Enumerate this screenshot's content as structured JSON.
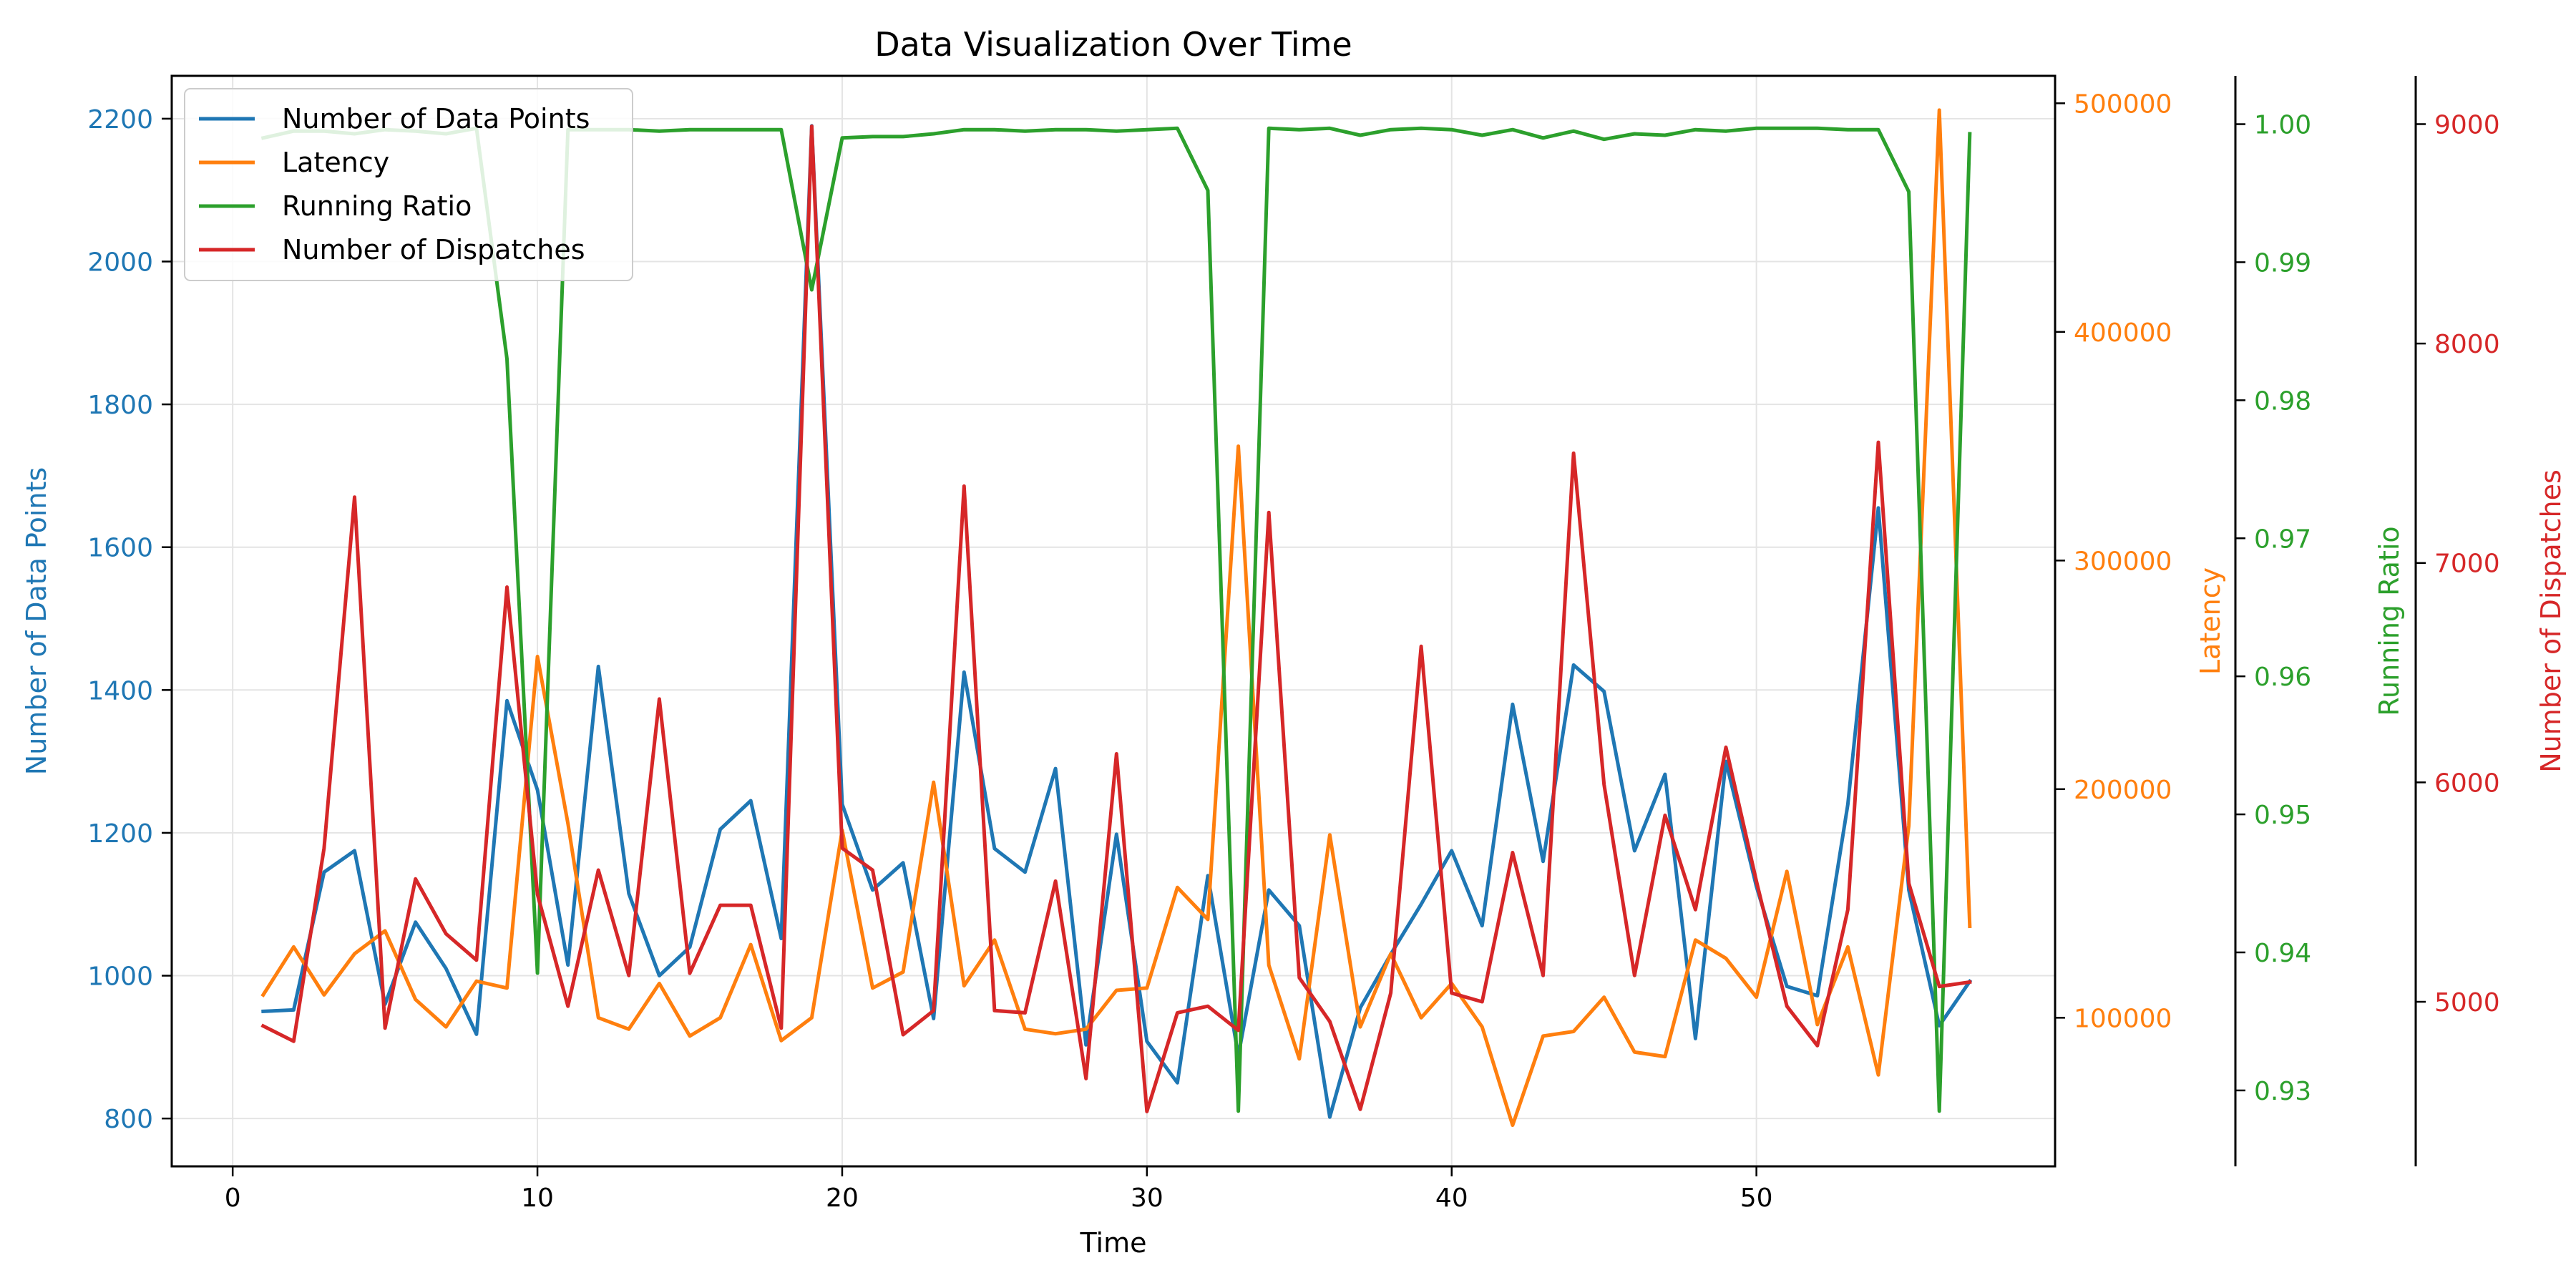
{
  "chart_data": {
    "type": "line",
    "title": "Data Visualization Over Time",
    "xlabel": "Time",
    "xlim": [
      -2,
      59.8
    ],
    "xticks": [
      0,
      10,
      20,
      30,
      40,
      50
    ],
    "grid": true,
    "legend": "top-left",
    "x": [
      1,
      2,
      3,
      4,
      5,
      6,
      7,
      8,
      9,
      10,
      11,
      12,
      13,
      14,
      15,
      16,
      17,
      18,
      19,
      20,
      21,
      22,
      23,
      24,
      25,
      26,
      27,
      28,
      29,
      30,
      31,
      32,
      33,
      34,
      35,
      36,
      37,
      38,
      39,
      40,
      41,
      42,
      43,
      44,
      45,
      46,
      47,
      48,
      49,
      50,
      51,
      52,
      53,
      54,
      55,
      56,
      57
    ],
    "series": [
      {
        "name": "Number of Data Points",
        "color": "#1f77b4",
        "axis": "Number of Data Points",
        "ylim": [
          733,
          2260
        ],
        "yticks": [
          800,
          1000,
          1200,
          1400,
          1600,
          1800,
          2000,
          2200
        ],
        "values": [
          950,
          952,
          1145,
          1175,
          960,
          1075,
          1010,
          918,
          1385,
          1260,
          1015,
          1433,
          1115,
          1000,
          1040,
          1205,
          1245,
          1052,
          2190,
          1240,
          1120,
          1158,
          940,
          1425,
          1178,
          1145,
          1290,
          903,
          1198,
          908,
          850,
          1140,
          888,
          1120,
          1070,
          802,
          955,
          1030,
          1100,
          1175,
          1070,
          1380,
          1160,
          1435,
          1398,
          1175,
          1282,
          912,
          1300,
          1125,
          985,
          972,
          1240,
          1655,
          1120,
          930,
          992
        ]
      },
      {
        "name": "Latency",
        "color": "#ff7f0e",
        "axis": "Latency",
        "ylim": [
          35000,
          512000
        ],
        "yticks": [
          100000,
          200000,
          300000,
          400000,
          500000
        ],
        "values": [
          110000,
          131000,
          110000,
          128000,
          138000,
          108000,
          96000,
          116000,
          113000,
          258000,
          185000,
          100000,
          95000,
          115000,
          92000,
          100000,
          132000,
          90000,
          100000,
          182000,
          113000,
          120000,
          203000,
          114000,
          134000,
          95000,
          93000,
          95000,
          112000,
          113000,
          157000,
          143000,
          350000,
          123000,
          82000,
          180000,
          96000,
          128000,
          100000,
          115000,
          96000,
          53000,
          92000,
          94000,
          109000,
          85000,
          83000,
          134000,
          126000,
          109000,
          164000,
          97000,
          131000,
          75000,
          184000,
          497000,
          140000
        ]
      },
      {
        "name": "Running Ratio",
        "color": "#2ca02c",
        "axis": "Running Ratio",
        "ylim": [
          0.9245,
          1.0035
        ],
        "yticks": [
          0.93,
          0.94,
          0.95,
          0.96,
          0.97,
          0.98,
          0.99,
          1.0
        ],
        "values": [
          0.999,
          0.9995,
          0.9995,
          0.9993,
          0.9996,
          0.9995,
          0.9993,
          0.9997,
          0.983,
          0.9385,
          0.9996,
          0.9996,
          0.9996,
          0.9995,
          0.9996,
          0.9996,
          0.9996,
          0.9996,
          0.988,
          0.999,
          0.9991,
          0.9991,
          0.9993,
          0.9996,
          0.9996,
          0.9995,
          0.9996,
          0.9996,
          0.9995,
          0.9996,
          0.9997,
          0.9952,
          0.9285,
          0.9997,
          0.9996,
          0.9997,
          0.9992,
          0.9996,
          0.9997,
          0.9996,
          0.9992,
          0.9996,
          0.999,
          0.9995,
          0.9989,
          0.9993,
          0.9992,
          0.9996,
          0.9995,
          0.9997,
          0.9997,
          0.9997,
          0.9996,
          0.9996,
          0.9951,
          0.9285,
          0.9993
        ]
      },
      {
        "name": "Number of Dispatches",
        "color": "#d62728",
        "axis": "Number of Dispatches",
        "ylim": [
          4250,
          9220
        ],
        "yticks": [
          5000,
          6000,
          7000,
          8000,
          9000
        ],
        "values": [
          4890,
          4820,
          5700,
          7300,
          4880,
          5560,
          5310,
          5190,
          6890,
          5490,
          4980,
          5600,
          5120,
          6380,
          5130,
          5440,
          5440,
          4880,
          8990,
          5700,
          5600,
          4850,
          4960,
          7350,
          4960,
          4950,
          5550,
          4650,
          6130,
          4500,
          4950,
          4980,
          4870,
          7230,
          5110,
          4910,
          4510,
          5040,
          6620,
          5040,
          5000,
          5680,
          5120,
          7500,
          5990,
          5120,
          5850,
          5420,
          6160,
          5550,
          4980,
          4800,
          5420,
          7550,
          5540,
          5070,
          5090
        ]
      }
    ]
  }
}
